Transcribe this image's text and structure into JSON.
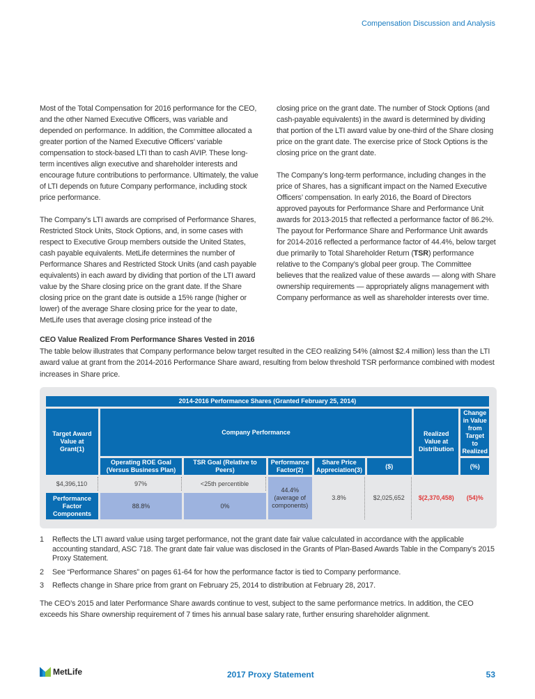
{
  "header": "Compensation Discussion and Analysis",
  "left_paragraphs": [
    "Most of the Total Compensation for 2016 performance for the CEO, and the other Named Executive Officers, was variable and depended on performance. In addition, the Committee allocated a greater portion of the Named Executive Officers’ variable compensation to stock-based LTI than to cash AVIP. These long-term incentives align executive and shareholder interests and encourage future contributions to performance. Ultimately, the value of LTI depends on future Company performance, including stock price performance.",
    "The Company’s LTI awards are comprised of Performance Shares, Restricted Stock Units, Stock Options, and, in some cases with respect to Executive Group members outside the United States, cash payable equivalents. MetLife determines the number of Performance Shares and Restricted Stock Units (and cash payable equivalents) in each award by dividing that portion of the LTI award value by the Share closing price on the grant date. If the Share closing price on the grant date is outside a 15% range (higher or lower) of the average Share closing price for the year to date, MetLife uses that average closing price instead of the"
  ],
  "right_paragraphs": [
    "closing price on the grant date. The number of Stock Options (and cash-payable equivalents) in the award is determined by dividing that portion of the LTI award value by one-third of the Share closing price on the grant date. The exercise price of Stock Options is the closing price on the grant date."
  ],
  "right_p2_a": "The Company’s long-term performance, including changes in the price of Shares, has a significant impact on the Named Executive Officers’ compensation. In early 2016, the Board of Directors approved payouts for Performance Share and Performance Unit awards for 2013-2015 that reflected a performance factor of 86.2%. The payout for Performance Share and Performance Unit awards for 2014-2016 reflected a performance factor of 44.4%, below target due primarily to Total Shareholder Return (",
  "right_p2_bold": "TSR",
  "right_p2_b": ") performance relative to the Company’s global peer group. The Committee believes that the realized value of these awards — along with Share ownership requirements — appropriately aligns management with Company performance as well as shareholder interests over time.",
  "section": {
    "title": "CEO Value Realized From Performance Shares Vested in 2016",
    "intro": "The table below illustrates that Company performance below target resulted in the CEO realizing 54% (almost $2.4 million) less than the LTI award value at grant from the 2014-2016 Performance Share award, resulting from below threshold TSR performance combined with modest increases in Share price."
  },
  "table": {
    "title": "2014-2016 Performance Shares (Granted February 25, 2014)",
    "target_award": "Target Award Value at Grant(1)",
    "company_performance": "Company Performance",
    "realized_value": "Realized Value at Distribution",
    "change_in_value": "Change in Value from Target to Realized",
    "roe_goal": "Operating ROE Goal (Versus Business Plan)",
    "tsr_goal": "TSR Goal (Relative to Peers)",
    "perf_factor": "Performance Factor(2)",
    "share_price": "Share Price Appreciation(3)",
    "dollar": "($)",
    "percent": "(%)",
    "row1": {
      "target": "$4,396,110",
      "roe": "97%",
      "tsr": "<25th percentible"
    },
    "row2_label": "Performance Factor Components",
    "row2": {
      "roe": "88.8%",
      "tsr": "0%"
    },
    "perf_factor_value": "44.4%",
    "perf_factor_note": "(average of components)",
    "share_price_value": "3.8%",
    "realized_value_value": "$2,025,652",
    "change_dollar": "$(2,370,458)",
    "change_percent": "(54)%"
  },
  "notes": [
    {
      "n": "1",
      "text": "Reflects the LTI award value using target performance, not the grant date fair value calculated in accordance with the applicable accounting standard, ASC 718. The grant date fair value was disclosed in the Grants of Plan-Based Awards Table in the Company’s 2015 Proxy Statement."
    },
    {
      "n": "2",
      "text": "See “Performance Shares” on pages 61-64 for how the performance factor is tied to Company performance."
    },
    {
      "n": "3",
      "text": "Reflects change in Share price from grant on February 25, 2014 to distribution at February 28, 2017."
    }
  ],
  "closing": "The CEO’s 2015 and later Performance Share awards continue to vest, subject to the same performance metrics. In addition, the CEO exceeds his Share ownership requirement of 7 times his annual base salary rate, further ensuring shareholder alignment.",
  "footer": {
    "logo": "MetLife",
    "title": "2017 Proxy Statement",
    "page": "53"
  },
  "colors": {
    "accent": "#1a7cc1",
    "table_header": "#0a6db3",
    "highlight": "#9db3df",
    "negative": "#e03a3a"
  }
}
